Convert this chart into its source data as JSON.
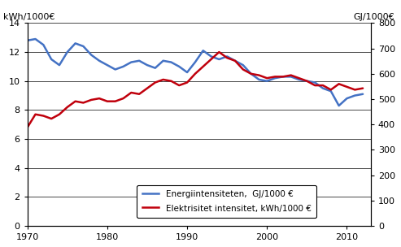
{
  "blue_x": [
    1970,
    1971,
    1972,
    1973,
    1974,
    1975,
    1976,
    1977,
    1978,
    1979,
    1980,
    1981,
    1982,
    1983,
    1984,
    1985,
    1986,
    1987,
    1988,
    1989,
    1990,
    1991,
    1992,
    1993,
    1994,
    1995,
    1996,
    1997,
    1998,
    1999,
    2000,
    2001,
    2002,
    2003,
    2004,
    2005,
    2006,
    2007,
    2008,
    2009,
    2010,
    2011,
    2012
  ],
  "blue_y": [
    12.8,
    12.9,
    12.5,
    11.5,
    11.1,
    12.0,
    12.6,
    12.4,
    11.8,
    11.4,
    11.1,
    10.8,
    11.0,
    11.3,
    11.4,
    11.1,
    10.9,
    11.4,
    11.3,
    11.0,
    10.6,
    11.3,
    12.1,
    11.7,
    11.5,
    11.7,
    11.4,
    11.1,
    10.5,
    10.1,
    10.0,
    10.2,
    10.3,
    10.3,
    10.1,
    10.0,
    9.9,
    9.5,
    9.3,
    8.3,
    8.8,
    9.0,
    9.1
  ],
  "red_x": [
    1970,
    1971,
    1972,
    1973,
    1974,
    1975,
    1976,
    1977,
    1978,
    1979,
    1980,
    1981,
    1982,
    1983,
    1984,
    1985,
    1986,
    1987,
    1988,
    1989,
    1990,
    1991,
    1992,
    1993,
    1994,
    1995,
    1996,
    1997,
    1998,
    1999,
    2000,
    2001,
    2002,
    2003,
    2004,
    2005,
    2006,
    2007,
    2008,
    2009,
    2010,
    2011,
    2012
  ],
  "red_y": [
    6.8,
    7.7,
    7.6,
    7.4,
    7.7,
    8.2,
    8.6,
    8.5,
    8.7,
    8.8,
    8.6,
    8.6,
    8.8,
    9.2,
    9.1,
    9.5,
    9.9,
    10.1,
    10.0,
    9.7,
    9.9,
    10.5,
    11.0,
    11.5,
    12.0,
    11.6,
    11.4,
    10.8,
    10.5,
    10.4,
    10.2,
    10.3,
    10.3,
    10.4,
    10.2,
    10.0,
    9.7,
    9.7,
    9.4,
    9.8,
    9.6,
    9.4,
    9.5
  ],
  "left_ylabel": "kWh/1000€",
  "right_ylabel": "GJ/1000€",
  "left_ylim": [
    0,
    14
  ],
  "right_ylim": [
    0,
    800
  ],
  "left_yticks": [
    0,
    2,
    4,
    6,
    8,
    10,
    12,
    14
  ],
  "right_yticks": [
    0,
    100,
    200,
    300,
    400,
    500,
    600,
    700,
    800
  ],
  "xlim": [
    1970,
    2013
  ],
  "xticks": [
    1970,
    1980,
    1990,
    2000,
    2010
  ],
  "blue_color": "#4472C4",
  "red_color": "#C0000C",
  "legend_blue": "Energiintensiteten,  GJ/1000 €",
  "legend_red": "Elektrisitet intensitet, kWh/1000 €",
  "linewidth": 1.8,
  "bg_color": "#FFFFFF",
  "grid_color": "#000000"
}
